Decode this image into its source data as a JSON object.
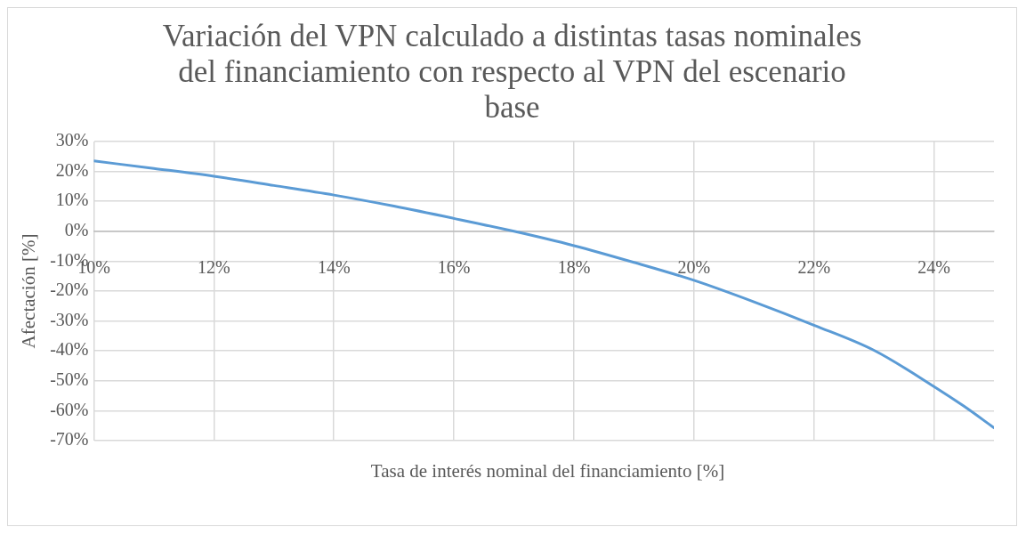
{
  "chart_data": {
    "type": "line",
    "title": "Variación del VPN calculado a distintas tasas nominales del financiamiento con respecto al VPN del escenario base",
    "xlabel": "Tasa de interés nominal del financiamiento [%]",
    "ylabel": "Afectación [%]",
    "x": [
      10,
      11,
      12,
      13,
      14,
      15,
      16,
      17,
      18,
      19,
      20,
      21,
      22,
      23,
      24,
      24.5,
      25
    ],
    "series": [
      {
        "color": "#5b9bd5",
        "values": [
          23.5,
          21,
          18.4,
          15.3,
          12.1,
          8.4,
          4.3,
          0,
          -4.8,
          -10.4,
          -16.4,
          -23.6,
          -31.4,
          -39.8,
          -51.9,
          -58.5,
          -65.7
        ]
      }
    ],
    "xlim": [
      10,
      25
    ],
    "xticks": [
      {
        "value": 10,
        "label": "10%"
      },
      {
        "value": 12,
        "label": "12%"
      },
      {
        "value": 14,
        "label": "14%"
      },
      {
        "value": 16,
        "label": "16%"
      },
      {
        "value": 18,
        "label": "18%"
      },
      {
        "value": 20,
        "label": "20%"
      },
      {
        "value": 22,
        "label": "22%"
      },
      {
        "value": 24,
        "label": "24%"
      }
    ],
    "ylim": [
      -70,
      30
    ],
    "yticks": [
      {
        "value": -70,
        "label": "-70%"
      },
      {
        "value": -60,
        "label": "-60%"
      },
      {
        "value": -50,
        "label": "-50%"
      },
      {
        "value": -40,
        "label": "-40%"
      },
      {
        "value": -30,
        "label": "-30%"
      },
      {
        "value": -20,
        "label": "-20%"
      },
      {
        "value": -10,
        "label": "-10%"
      },
      {
        "value": 0,
        "label": "0%"
      },
      {
        "value": 10,
        "label": "10%"
      },
      {
        "value": 20,
        "label": "20%"
      },
      {
        "value": 30,
        "label": "30%"
      }
    ],
    "grid": true,
    "legend": false,
    "marker": "none",
    "line_style": "solid"
  }
}
